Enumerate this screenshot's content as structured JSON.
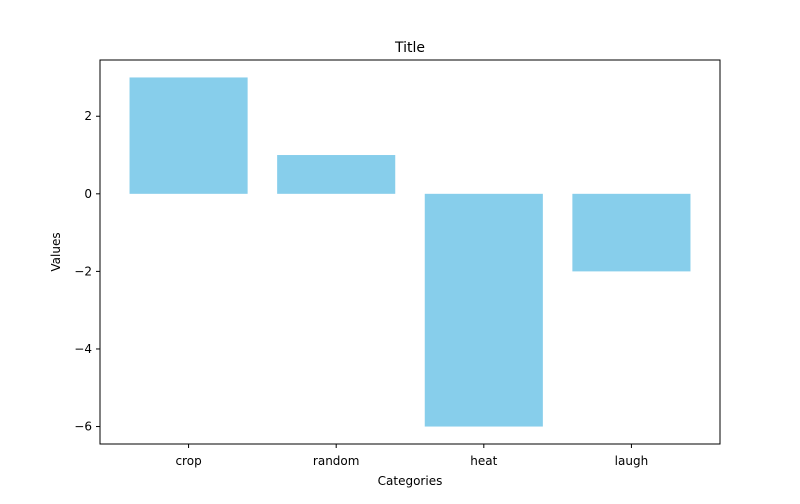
{
  "chart_data": {
    "type": "bar",
    "title": "Title",
    "xlabel": "Categories",
    "ylabel": "Values",
    "categories": [
      "crop",
      "random",
      "heat",
      "laugh"
    ],
    "values": [
      3,
      1,
      -6,
      -2
    ],
    "ylim": [
      -6.45,
      3.45
    ],
    "yticks": [
      -6,
      -4,
      -2,
      0,
      2
    ],
    "ytick_labels": [
      "−6",
      "−4",
      "−2",
      "0",
      "2"
    ],
    "bar_color": "#87ceeb",
    "grid": false,
    "legend": "none"
  }
}
